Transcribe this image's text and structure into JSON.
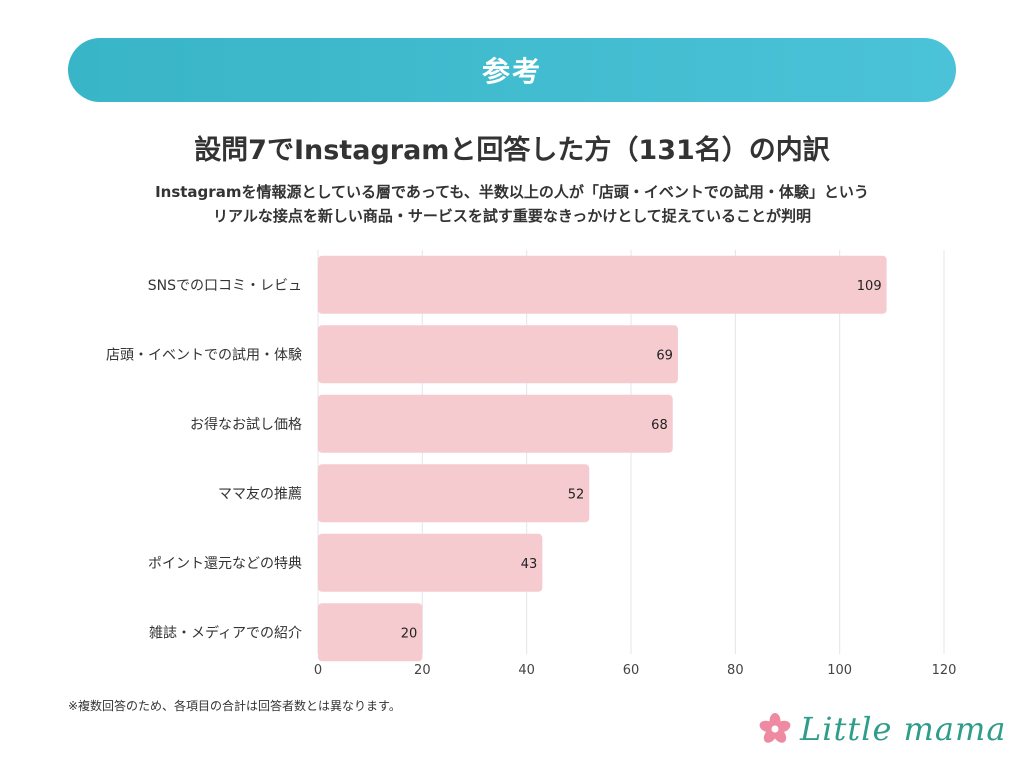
{
  "banner": {
    "label": "参考"
  },
  "title": "設問7でInstagramと回答した方（131名）の内訳",
  "subtitle_lines": [
    "Instagramを情報源としている層であっても、半数以上の人が「店頭・イベントでの試用・体験」という",
    "リアルな接点を新しい商品・サービスを試す重要なきっかけとして捉えていることが判明"
  ],
  "footnote": "※複数回答のため、各項目の合計は回答者数とは異なります。",
  "logo": {
    "text": "Little mama",
    "icon": "flower-icon"
  },
  "colors": {
    "banner": "#45bdd3",
    "bar": "#f6cbd0",
    "grid": "#e4e4ec",
    "logo": "#2f9d8a",
    "flower": "#ef8aa3"
  },
  "chart_data": {
    "type": "bar",
    "orientation": "horizontal",
    "categories": [
      "SNSでの口コミ・レビュ",
      "店頭・イベントでの試用・体験",
      "お得なお試し価格",
      "ママ友の推薦",
      "ポイント還元などの特典",
      "雑誌・メディアでの紹介"
    ],
    "values": [
      109,
      69,
      68,
      52,
      43,
      20
    ],
    "xlim": [
      0,
      120
    ],
    "xticks": [
      0,
      20,
      40,
      60,
      80,
      100,
      120
    ],
    "grid": true,
    "data_labels": true
  }
}
